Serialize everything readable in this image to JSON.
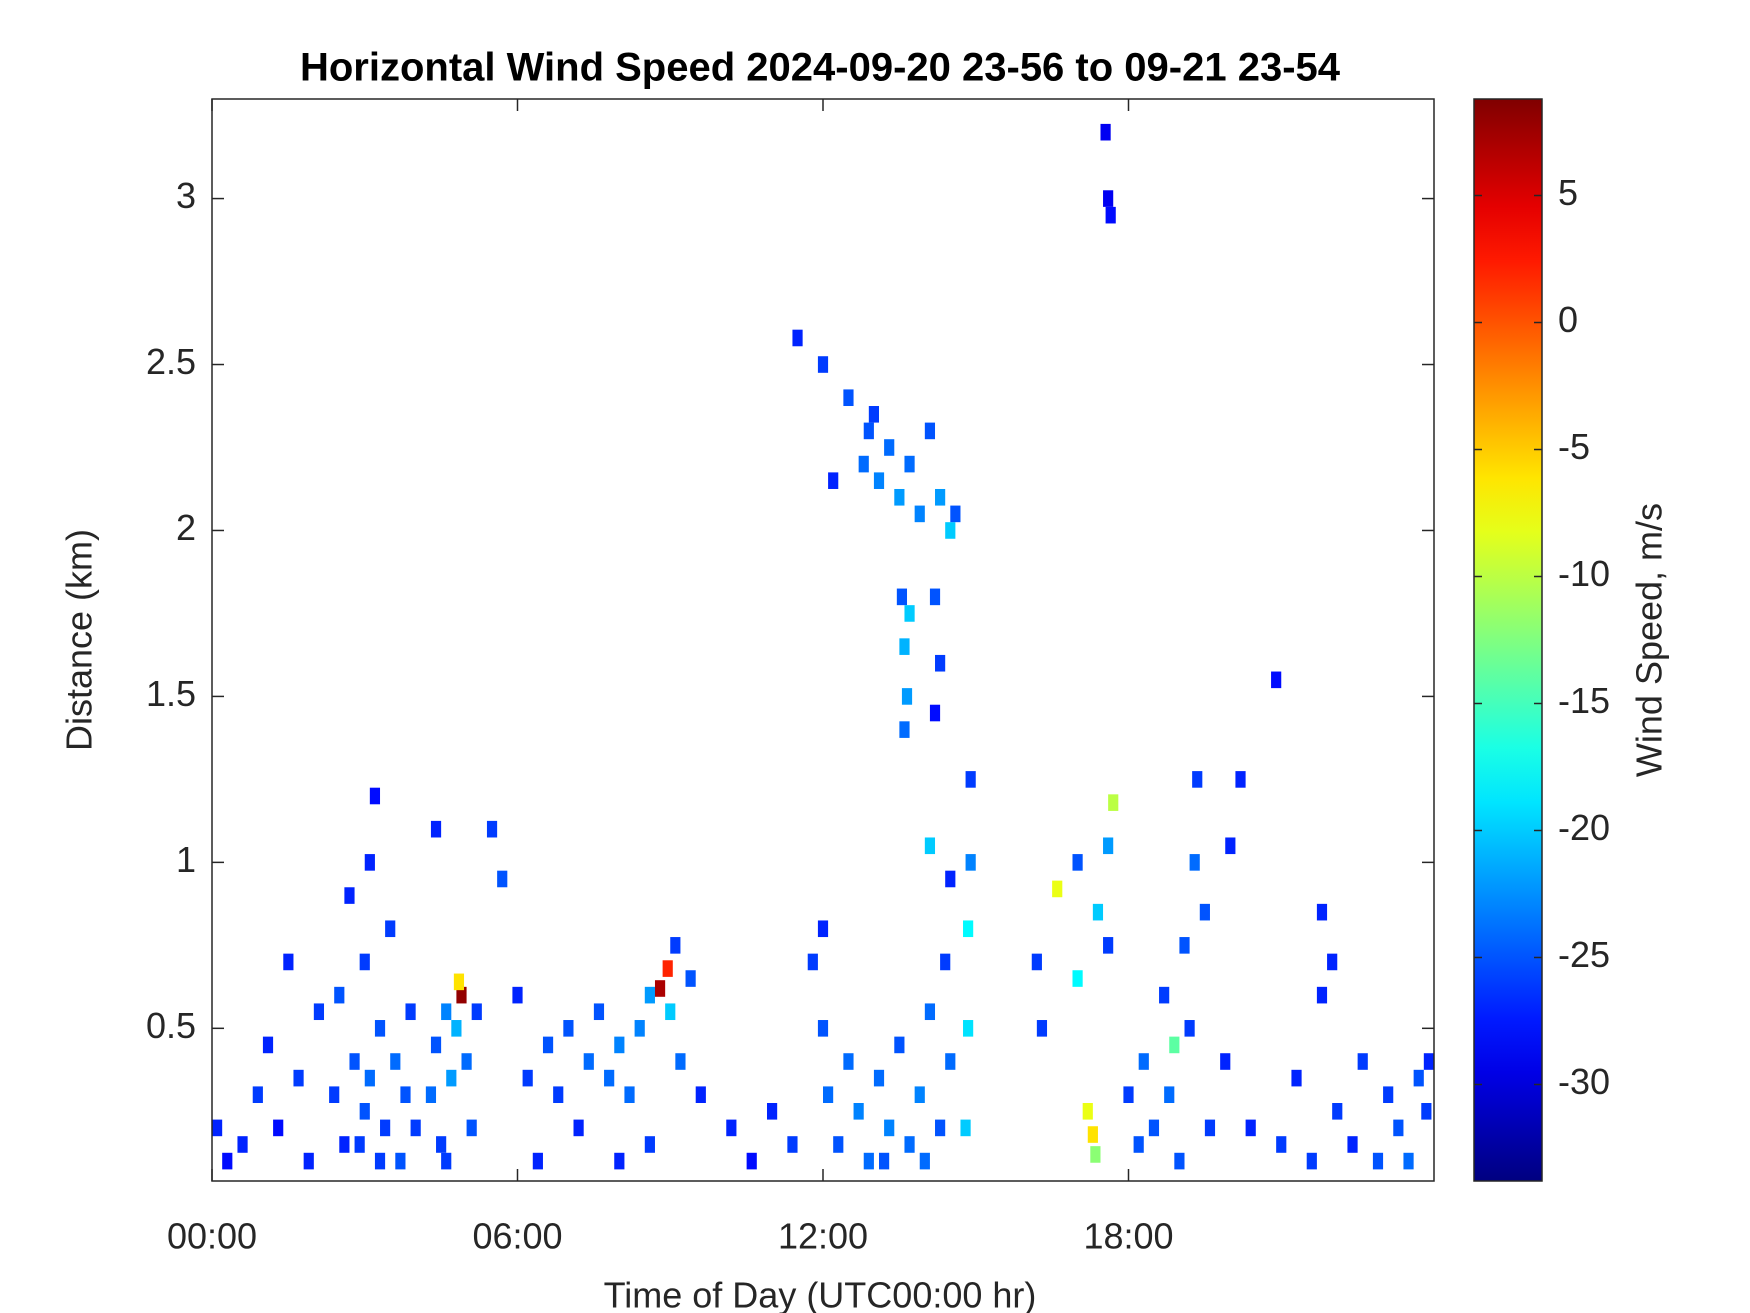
{
  "chart_data": {
    "type": "heatmap",
    "title": "Horizontal Wind Speed 2024-09-20 23-56 to 09-21 23-54",
    "x_label": "Time of Day (UTC00:00 hr)",
    "y_label": "Distance (km)",
    "colorbar_label": "Wind Speed, m/s",
    "colormap": "jet",
    "xlim": [
      0,
      24
    ],
    "xticks": [
      {
        "value": 0,
        "label": "00:00"
      },
      {
        "value": 6,
        "label": "06:00"
      },
      {
        "value": 12,
        "label": "12:00"
      },
      {
        "value": 18,
        "label": "18:00"
      }
    ],
    "ylim": [
      0.04,
      3.3
    ],
    "yticks": [
      0.5,
      1,
      1.5,
      2,
      2.5,
      3
    ],
    "clim": [
      -33.8,
      8.8
    ],
    "cticks": [
      -30,
      -25,
      -20,
      -15,
      -10,
      -5,
      0,
      5
    ],
    "x": [
      0.1,
      0.3,
      0.6,
      0.9,
      1.1,
      1.3,
      1.5,
      1.7,
      1.9,
      2.1,
      2.4,
      2.5,
      2.7,
      2.8,
      2.9,
      3.0,
      3.1,
      3.2,
      3.1,
      3.3,
      3.4,
      3.5,
      3.6,
      3.7,
      3.8,
      3.9,
      4.0,
      3.0,
      2.6,
      3.3,
      4.3,
      4.4,
      4.5,
      4.6,
      4.7,
      4.8,
      4.9,
      4.85,
      5.0,
      5.1,
      5.2,
      5.5,
      5.7,
      4.4,
      4.6,
      6.0,
      6.2,
      6.4,
      6.6,
      6.8,
      7.0,
      7.2,
      7.4,
      7.6,
      7.8,
      8.0,
      8.2,
      8.4,
      8.6,
      8.8,
      8.95,
      9.0,
      9.1,
      9.2,
      9.4,
      8.0,
      8.6,
      9.6,
      10.2,
      10.6,
      11.0,
      11.4,
      11.8,
      12.0,
      12.1,
      12.3,
      12.5,
      12.7,
      12.9,
      13.1,
      13.3,
      13.5,
      13.7,
      13.9,
      14.1,
      14.3,
      14.4,
      14.5,
      12.0,
      13.2,
      14.0,
      14.8,
      14.85,
      14.85,
      14.9,
      14.9,
      14.5,
      14.1,
      11.5,
      12.0,
      12.5,
      12.9,
      12.8,
      13.1,
      13.3,
      13.5,
      13.7,
      13.9,
      14.1,
      14.3,
      14.5,
      14.6,
      12.2,
      13.0,
      13.55,
      13.6,
      13.65,
      13.6,
      13.7,
      14.2,
      14.3,
      14.2,
      16.2,
      16.3,
      16.6,
      17.0,
      17.2,
      17.3,
      17.35,
      17.4,
      17.6,
      17.7,
      17.6,
      17.0,
      17.55,
      17.6,
      17.65,
      18.0,
      18.2,
      18.3,
      18.5,
      18.7,
      18.8,
      19.0,
      19.1,
      19.2,
      19.3,
      19.35,
      19.5,
      19.6,
      19.9,
      20.2,
      20.0,
      18.9,
      20.4,
      20.9,
      21.0,
      21.3,
      21.6,
      21.8,
      22.1,
      22.4,
      22.6,
      22.9,
      23.1,
      23.3,
      23.5,
      23.7,
      23.85,
      23.9,
      21.8,
      22.0
    ],
    "y": [
      0.2,
      0.1,
      0.15,
      0.3,
      0.45,
      0.2,
      0.7,
      0.35,
      0.1,
      0.55,
      0.3,
      0.6,
      0.9,
      0.4,
      0.15,
      0.7,
      1.0,
      1.2,
      0.35,
      0.5,
      0.2,
      0.8,
      0.4,
      0.1,
      0.3,
      0.55,
      0.2,
      0.25,
      0.15,
      0.1,
      0.3,
      0.45,
      0.15,
      0.55,
      0.35,
      0.5,
      0.6,
      0.64,
      0.4,
      0.2,
      0.55,
      1.1,
      0.95,
      1.1,
      0.1,
      0.6,
      0.35,
      0.1,
      0.45,
      0.3,
      0.5,
      0.2,
      0.4,
      0.55,
      0.35,
      0.45,
      0.3,
      0.5,
      0.6,
      0.62,
      0.68,
      0.55,
      0.75,
      0.4,
      0.65,
      0.1,
      0.15,
      0.3,
      0.2,
      0.1,
      0.25,
      0.15,
      0.7,
      0.5,
      0.3,
      0.15,
      0.4,
      0.25,
      0.1,
      0.35,
      0.2,
      0.45,
      0.15,
      0.3,
      0.55,
      0.2,
      0.7,
      0.4,
      0.8,
      0.1,
      0.1,
      0.2,
      0.5,
      0.8,
      1.0,
      1.25,
      0.95,
      1.05,
      2.58,
      2.5,
      2.4,
      2.3,
      2.2,
      2.15,
      2.25,
      2.1,
      2.2,
      2.05,
      2.3,
      2.1,
      2.0,
      2.05,
      2.15,
      2.35,
      1.8,
      1.65,
      1.5,
      1.4,
      1.75,
      1.8,
      1.6,
      1.45,
      0.7,
      0.5,
      0.92,
      1.0,
      0.25,
      0.18,
      0.12,
      0.85,
      1.05,
      1.18,
      0.75,
      0.65,
      3.2,
      3.0,
      2.95,
      0.3,
      0.15,
      0.4,
      0.2,
      0.6,
      0.3,
      0.1,
      0.75,
      0.5,
      1.0,
      1.25,
      0.85,
      0.2,
      0.4,
      1.25,
      1.05,
      0.45,
      0.2,
      1.55,
      0.15,
      0.35,
      0.1,
      0.6,
      0.25,
      0.15,
      0.4,
      0.1,
      0.3,
      0.2,
      0.1,
      0.35,
      0.25,
      0.4,
      0.85,
      0.7
    ],
    "values": [
      -27,
      -28,
      -27,
      -26,
      -27,
      -28,
      -27,
      -26,
      -27,
      -26,
      -26,
      -25,
      -27,
      -25,
      -26,
      -26,
      -27,
      -28,
      -24,
      -25,
      -26,
      -26,
      -24,
      -25,
      -25,
      -26,
      -26,
      -25,
      -27,
      -26,
      -24,
      -25,
      -26,
      -23,
      -22,
      -21,
      8,
      -6,
      -24,
      -25,
      -26,
      -26,
      -25,
      -27,
      -26,
      -27,
      -26,
      -27,
      -25,
      -26,
      -25,
      -27,
      -24,
      -25,
      -24,
      -23,
      -24,
      -23,
      -22,
      7,
      2,
      -20,
      -26,
      -24,
      -25,
      -27,
      -26,
      -27,
      -27,
      -28,
      -27,
      -26,
      -26,
      -25,
      -24,
      -25,
      -24,
      -23,
      -24,
      -24,
      -23,
      -25,
      -24,
      -23,
      -24,
      -25,
      -26,
      -24,
      -27,
      -25,
      -24,
      -20,
      -19,
      -18,
      -23,
      -26,
      -27,
      -20,
      -27,
      -26,
      -25,
      -25,
      -24,
      -23,
      -24,
      -22,
      -24,
      -23,
      -25,
      -22,
      -20,
      -25,
      -27,
      -26,
      -25,
      -21,
      -22,
      -24,
      -20,
      -25,
      -26,
      -28,
      -26,
      -26,
      -8,
      -25,
      -8,
      -6,
      -12,
      -20,
      -22,
      -10,
      -26,
      -18,
      -29,
      -29,
      -28,
      -26,
      -25,
      -24,
      -25,
      -26,
      -24,
      -25,
      -25,
      -26,
      -24,
      -26,
      -25,
      -26,
      -27,
      -27,
      -27,
      -14,
      -27,
      -28,
      -26,
      -27,
      -26,
      -27,
      -26,
      -27,
      -26,
      -25,
      -26,
      -25,
      -24,
      -25,
      -26,
      -27,
      -27,
      -27
    ]
  }
}
